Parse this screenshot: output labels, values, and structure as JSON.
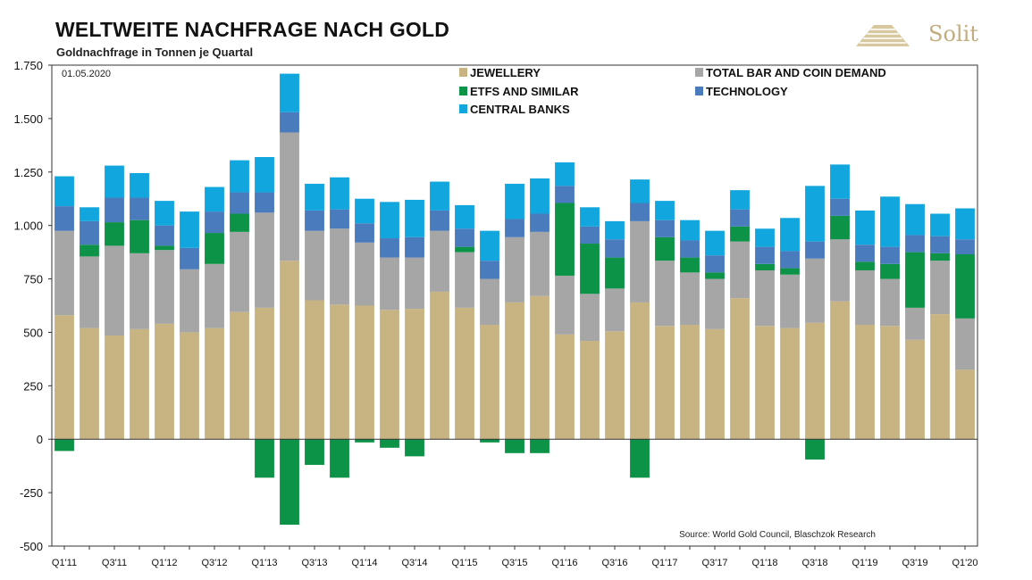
{
  "header": {
    "title": "WELTWEITE NACHFRAGE NACH GOLD",
    "subtitle": "Goldnachfrage in Tonnen je Quartal",
    "date_label": "01.05.2020",
    "source": "Source: World Gold Council, Blaschzok Research",
    "logo_text": "Solit"
  },
  "chart_data": {
    "type": "bar",
    "stacked": true,
    "title": "WELTWEITE NACHFRAGE NACH GOLD",
    "subtitle": "Goldnachfrage in Tonnen je Quartal",
    "ylim": [
      -500,
      1750
    ],
    "yticks": [
      -500,
      -250,
      0,
      250,
      500,
      750,
      "1.000",
      "1.250",
      "1.500",
      "1.750"
    ],
    "ytick_labels": [
      "-500",
      "-250",
      "0",
      "250",
      "500",
      "750",
      "1.000",
      "1.250",
      "1.500",
      "1.750"
    ],
    "grid": false,
    "legend_position": "top-right",
    "categories": [
      "Q1'11",
      "Q2'11",
      "Q3'11",
      "Q4'11",
      "Q1'12",
      "Q2'12",
      "Q3'12",
      "Q4'12",
      "Q1'13",
      "Q2'13",
      "Q3'13",
      "Q4'13",
      "Q1'14",
      "Q2'14",
      "Q3'14",
      "Q4'14",
      "Q1'15",
      "Q2'15",
      "Q3'15",
      "Q4'15",
      "Q1'16",
      "Q2'16",
      "Q3'16",
      "Q4'16",
      "Q1'17",
      "Q2'17",
      "Q3'17",
      "Q4'17",
      "Q1'18",
      "Q2'18",
      "Q3'18",
      "Q4'18",
      "Q1'19",
      "Q2'19",
      "Q3'19",
      "Q4'19",
      "Q1'20"
    ],
    "xtick_labels": [
      "Q1'11",
      "Q3'11",
      "Q1'12",
      "Q3'12",
      "Q1'13",
      "Q3'13",
      "Q1'14",
      "Q3'14",
      "Q1'15",
      "Q3'15",
      "Q1'16",
      "Q3'16",
      "Q1'17",
      "Q3'17",
      "Q1'18",
      "Q3'18",
      "Q1'19",
      "Q3'19",
      "Q1'20"
    ],
    "series": [
      {
        "name": "JEWELLERY",
        "color": "#c8b483",
        "values": [
          580,
          520,
          485,
          515,
          540,
          500,
          520,
          595,
          615,
          835,
          650,
          630,
          625,
          605,
          610,
          690,
          615,
          535,
          640,
          670,
          490,
          460,
          505,
          640,
          530,
          535,
          515,
          660,
          530,
          520,
          545,
          645,
          535,
          530,
          465,
          585,
          325
        ]
      },
      {
        "name": "TOTAL BAR AND COIN DEMAND",
        "color": "#a6a6a6",
        "values": [
          395,
          335,
          420,
          355,
          345,
          295,
          300,
          375,
          445,
          600,
          325,
          355,
          295,
          245,
          240,
          285,
          260,
          215,
          305,
          300,
          275,
          220,
          200,
          380,
          305,
          245,
          235,
          265,
          260,
          250,
          300,
          290,
          255,
          220,
          150,
          250,
          240
        ]
      },
      {
        "name": "ETFS AND SIMILAR",
        "color": "#0d9347",
        "values": [
          -55,
          55,
          110,
          155,
          20,
          0,
          145,
          85,
          -180,
          -400,
          -120,
          -180,
          -15,
          -40,
          -80,
          0,
          25,
          -15,
          -65,
          -65,
          340,
          235,
          145,
          -180,
          110,
          70,
          30,
          70,
          30,
          30,
          -95,
          110,
          40,
          70,
          260,
          35,
          300
        ]
      },
      {
        "name": "TECHNOLOGY",
        "color": "#4a7bbd",
        "values": [
          115,
          110,
          115,
          105,
          95,
          100,
          100,
          100,
          95,
          95,
          95,
          90,
          90,
          90,
          95,
          95,
          85,
          85,
          85,
          85,
          80,
          80,
          85,
          85,
          80,
          80,
          80,
          80,
          80,
          80,
          80,
          80,
          80,
          80,
          80,
          80,
          70
        ]
      },
      {
        "name": "CENTRAL BANKS",
        "color": "#12a6de",
        "values": [
          140,
          65,
          150,
          115,
          115,
          170,
          115,
          150,
          165,
          180,
          125,
          150,
          115,
          170,
          175,
          135,
          110,
          140,
          165,
          165,
          110,
          90,
          85,
          110,
          90,
          95,
          115,
          90,
          85,
          155,
          260,
          160,
          160,
          235,
          145,
          105,
          145
        ]
      }
    ]
  }
}
